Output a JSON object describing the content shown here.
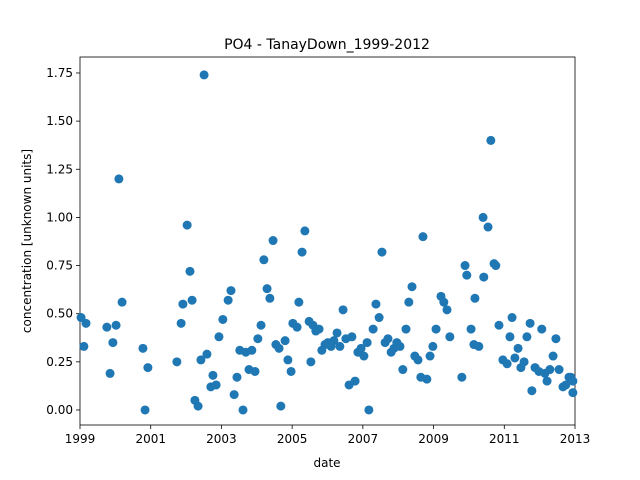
{
  "chart_data": {
    "type": "scatter",
    "title": "PO4 - TanayDown_1999-2012",
    "x_label": "date",
    "y_label": "concentration [unknown units]",
    "color": "#1f77b4",
    "x": [
      1999.03,
      1999.11,
      1999.17,
      1999.76,
      1999.85,
      1999.93,
      2000.02,
      2000.1,
      2000.19,
      2000.78,
      2000.84,
      2000.92,
      2001.74,
      2001.86,
      2001.91,
      2002.03,
      2002.11,
      2002.17,
      2002.25,
      2002.34,
      2002.42,
      2002.51,
      2002.59,
      2002.7,
      2002.76,
      2002.85,
      2002.93,
      2003.04,
      2003.19,
      2003.27,
      2003.36,
      2003.44,
      2003.52,
      2003.61,
      2003.69,
      2003.78,
      2003.86,
      2003.95,
      2004.03,
      2004.12,
      2004.2,
      2004.29,
      2004.37,
      2004.46,
      2004.54,
      2004.63,
      2004.68,
      2004.8,
      2004.88,
      2004.97,
      2005.02,
      2005.14,
      2005.19,
      2005.28,
      2005.36,
      2005.48,
      2005.53,
      2005.59,
      2005.67,
      2005.76,
      2005.84,
      2005.93,
      2006.01,
      2006.1,
      2006.18,
      2006.27,
      2006.35,
      2006.44,
      2006.52,
      2006.61,
      2006.69,
      2006.78,
      2006.86,
      2006.95,
      2007.03,
      2007.12,
      2007.17,
      2007.29,
      2007.37,
      2007.46,
      2007.54,
      2007.63,
      2007.71,
      2007.8,
      2007.88,
      2007.96,
      2008.05,
      2008.13,
      2008.22,
      2008.3,
      2008.39,
      2008.47,
      2008.56,
      2008.64,
      2008.7,
      2008.81,
      2008.9,
      2008.98,
      2009.07,
      2009.21,
      2009.29,
      2009.38,
      2009.46,
      2009.8,
      2009.89,
      2009.94,
      2010.06,
      2010.14,
      2010.17,
      2010.28,
      2010.4,
      2010.42,
      2010.54,
      2010.62,
      2010.71,
      2010.76,
      2010.85,
      2010.96,
      2011.08,
      2011.16,
      2011.22,
      2011.3,
      2011.39,
      2011.47,
      2011.56,
      2011.64,
      2011.73,
      2011.78,
      2011.87,
      2011.98,
      2012.06,
      2012.15,
      2012.21,
      2012.29,
      2012.38,
      2012.46,
      2012.55,
      2012.66,
      2012.74,
      2012.83,
      2012.88,
      2012.94,
      2012.94
    ],
    "values": [
      0.48,
      0.33,
      0.45,
      0.43,
      0.19,
      0.35,
      0.44,
      1.2,
      0.56,
      0.32,
      0.0,
      0.22,
      0.25,
      0.45,
      0.55,
      0.96,
      0.72,
      0.57,
      0.05,
      0.02,
      0.26,
      1.74,
      0.29,
      0.12,
      0.18,
      0.13,
      0.38,
      0.47,
      0.57,
      0.62,
      0.08,
      0.17,
      0.31,
      0.0,
      0.3,
      0.21,
      0.31,
      0.2,
      0.37,
      0.44,
      0.78,
      0.63,
      0.58,
      0.88,
      0.34,
      0.32,
      0.02,
      0.36,
      0.26,
      0.2,
      0.45,
      0.43,
      0.56,
      0.82,
      0.93,
      0.46,
      0.25,
      0.44,
      0.41,
      0.42,
      0.31,
      0.34,
      0.35,
      0.33,
      0.36,
      0.4,
      0.33,
      0.52,
      0.37,
      0.13,
      0.38,
      0.15,
      0.3,
      0.32,
      0.28,
      0.35,
      0.0,
      0.42,
      0.55,
      0.48,
      0.82,
      0.35,
      0.37,
      0.3,
      0.32,
      0.35,
      0.33,
      0.21,
      0.42,
      0.56,
      0.64,
      0.28,
      0.26,
      0.17,
      0.9,
      0.16,
      0.28,
      0.33,
      0.42,
      0.59,
      0.56,
      0.52,
      0.38,
      0.17,
      0.75,
      0.7,
      0.42,
      0.34,
      0.58,
      0.33,
      1.0,
      0.69,
      0.95,
      1.4,
      0.76,
      0.75,
      0.44,
      0.26,
      0.24,
      0.38,
      0.48,
      0.27,
      0.32,
      0.22,
      0.25,
      0.38,
      0.45,
      0.1,
      0.22,
      0.2,
      0.42,
      0.19,
      0.15,
      0.21,
      0.28,
      0.37,
      0.21,
      0.12,
      0.13,
      0.17,
      0.17,
      0.09,
      0.15
    ],
    "xlim": [
      1999,
      2013
    ],
    "xticks": [
      1999,
      2001,
      2003,
      2005,
      2007,
      2009,
      2011,
      2013
    ],
    "ylim": [
      -0.078,
      1.833
    ],
    "yticks": [
      {
        "value": 0,
        "label": "0.00"
      },
      {
        "value": 0.25,
        "label": "0.25"
      },
      {
        "value": 0.5,
        "label": "0.50"
      },
      {
        "value": 0.75,
        "label": "0.75"
      },
      {
        "value": 1,
        "label": "1.00"
      },
      {
        "value": 1.25,
        "label": "1.25"
      },
      {
        "value": 1.5,
        "label": "1.50"
      },
      {
        "value": 1.75,
        "label": "1.75"
      }
    ],
    "grid": false
  }
}
